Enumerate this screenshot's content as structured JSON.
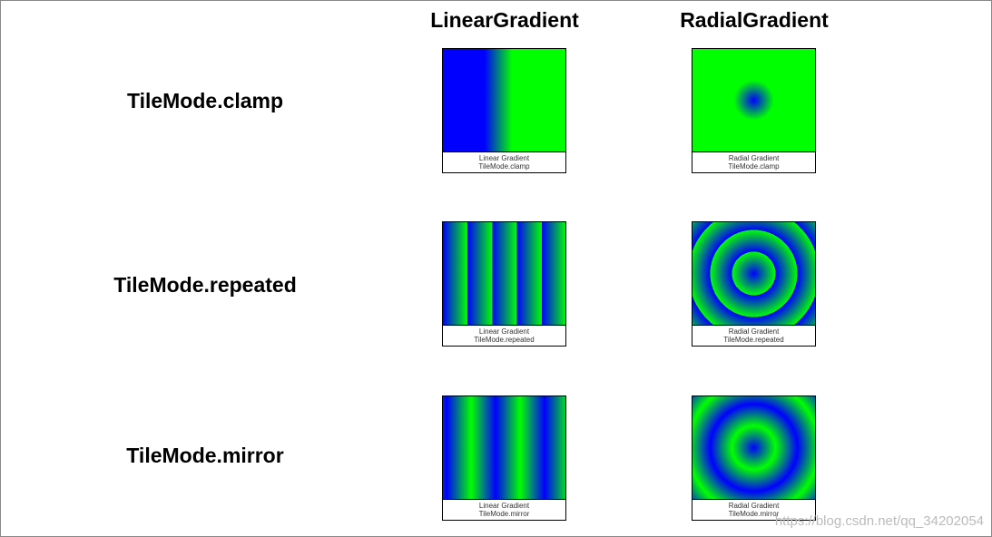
{
  "columns": [
    "LinearGradient",
    "RadialGradient"
  ],
  "rows": [
    {
      "label": "TileMode.clamp",
      "cells": [
        {
          "title": "Linear Gradient",
          "subtitle": "TileMode.clamp"
        },
        {
          "title": "Radial Gradient",
          "subtitle": "TileMode.clamp"
        }
      ]
    },
    {
      "label": "TileMode.repeated",
      "cells": [
        {
          "title": "Linear Gradient",
          "subtitle": "TileMode.repeated"
        },
        {
          "title": "Radial Gradient",
          "subtitle": "TileMode.repeated"
        }
      ]
    },
    {
      "label": "TileMode.mirror",
      "cells": [
        {
          "title": "Linear Gradient",
          "subtitle": "TileMode.mirror"
        },
        {
          "title": "Radial Gradient",
          "subtitle": "TileMode.mirror"
        }
      ]
    }
  ],
  "watermark": "https://blog.csdn.net/qq_34202054"
}
